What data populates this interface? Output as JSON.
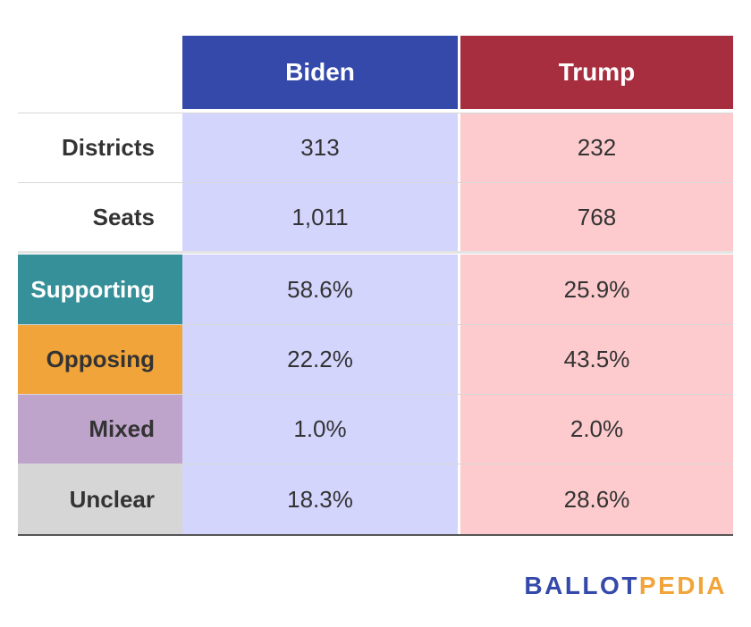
{
  "chart_data": {
    "type": "table",
    "columns": [
      "Biden",
      "Trump"
    ],
    "rows": [
      {
        "label": "Districts",
        "values": [
          "313",
          "232"
        ]
      },
      {
        "label": "Seats",
        "values": [
          "1,011",
          "768"
        ]
      },
      {
        "label": "Supporting",
        "values": [
          "58.6%",
          "25.9%"
        ]
      },
      {
        "label": "Opposing",
        "values": [
          "22.2%",
          "43.5%"
        ]
      },
      {
        "label": "Mixed",
        "values": [
          "1.0%",
          "2.0%"
        ]
      },
      {
        "label": "Unclear",
        "values": [
          "18.3%",
          "28.6%"
        ]
      }
    ]
  },
  "colors": {
    "biden_header": "#3449a9",
    "trump_header": "#a72e3f",
    "biden_cell": "#d4d5fd",
    "trump_cell": "#fdcacd",
    "supporting": "#35909a",
    "opposing": "#f1a43a",
    "mixed": "#bea4cb",
    "unclear": "#d6d6d6",
    "logo_blue": "#3449a9",
    "logo_orange": "#f1a43a"
  },
  "logo": {
    "part1": "BALLOT",
    "part2": "PEDIA"
  }
}
